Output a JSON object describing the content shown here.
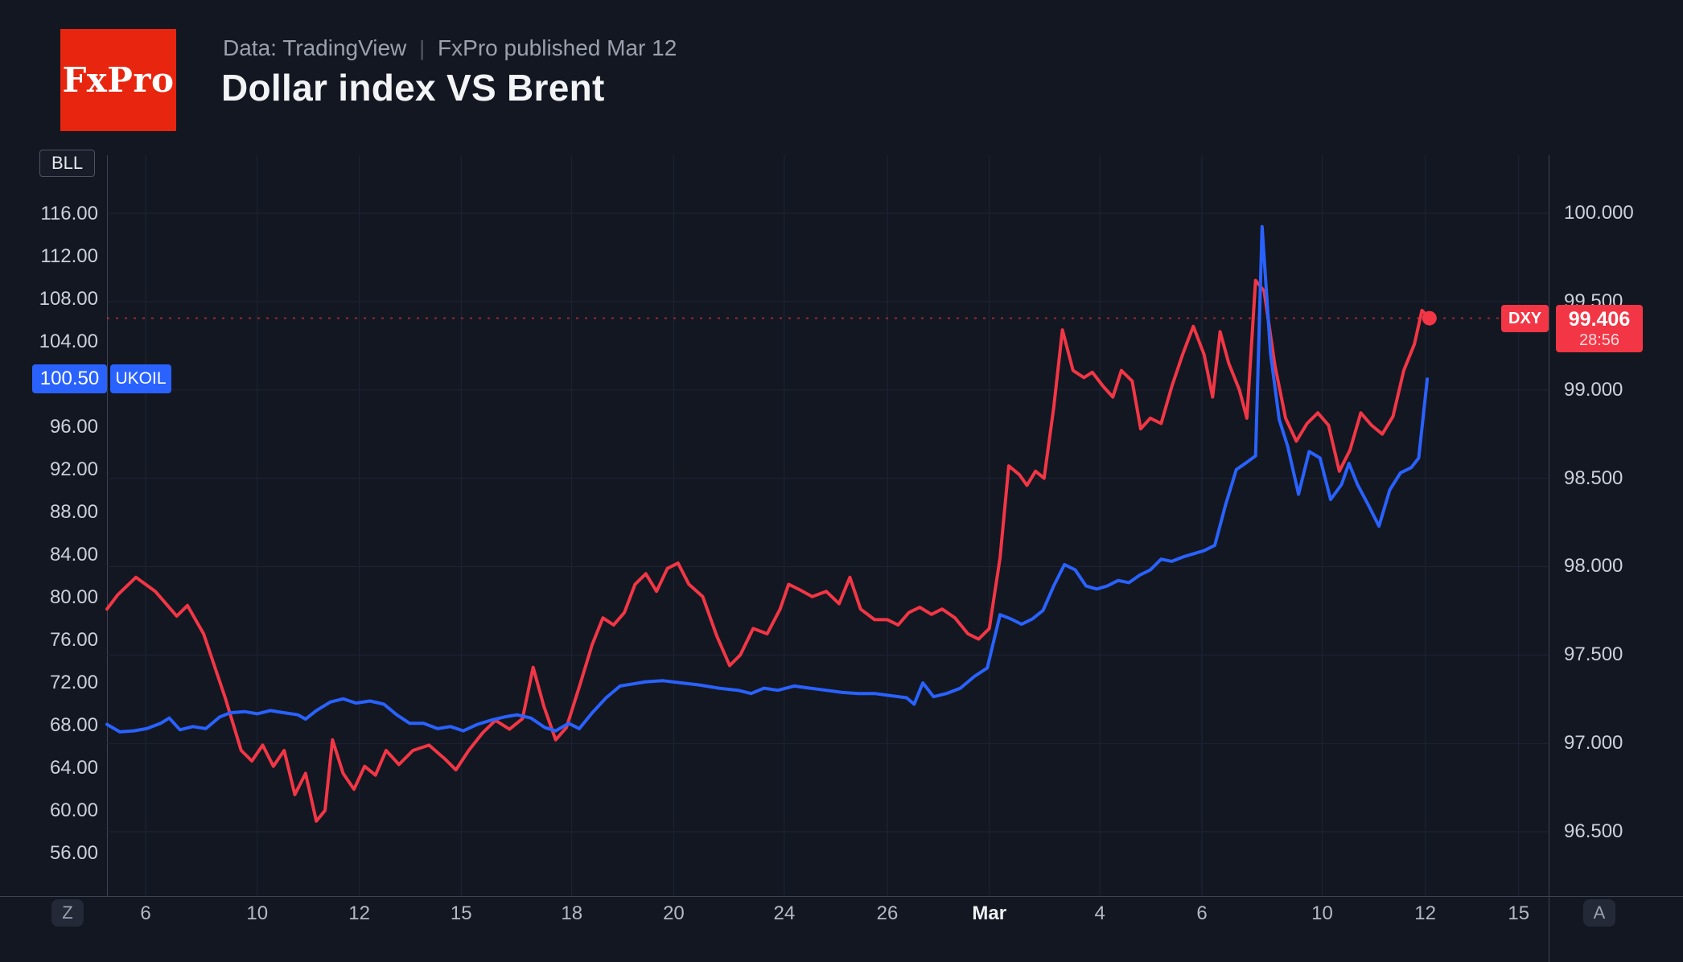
{
  "header": {
    "logo_text": "FxPro",
    "source": "Data: TradingView",
    "divider": "|",
    "published": "FxPro published Mar 12",
    "title": "Dollar index VS Brent"
  },
  "chart": {
    "symbol_badge": "BLL",
    "buttons": {
      "timezone": "Z",
      "auto_scale": "A"
    }
  },
  "chart_data": {
    "type": "line",
    "title": "Dollar index VS Brent",
    "xlabel": "",
    "ylabel": "",
    "grid": true,
    "legend_position": "none",
    "colors": {
      "dxy": "#f23645",
      "ukoil": "#2962ff"
    },
    "x_axis": {
      "note": "trading days Feb 6 - Mar 15",
      "ticks": [
        {
          "f": 0.0268,
          "label": "6"
        },
        {
          "f": 0.1042,
          "label": "10"
        },
        {
          "f": 0.175,
          "label": "12"
        },
        {
          "f": 0.2457,
          "label": "15"
        },
        {
          "f": 0.3224,
          "label": "18"
        },
        {
          "f": 0.3931,
          "label": "20"
        },
        {
          "f": 0.4698,
          "label": "24"
        },
        {
          "f": 0.5413,
          "label": "26"
        },
        {
          "f": 0.612,
          "label": "Mar",
          "bold": true
        },
        {
          "f": 0.6887,
          "label": "4"
        },
        {
          "f": 0.7595,
          "label": "6"
        },
        {
          "f": 0.8429,
          "label": "10"
        },
        {
          "f": 0.9144,
          "label": "12"
        },
        {
          "f": 0.9792,
          "label": "15"
        }
      ]
    },
    "left_axis": {
      "symbol": "UKOIL",
      "min": 52.0,
      "max": 121.5,
      "ticks": [
        {
          "label": "116.00",
          "v": 116
        },
        {
          "label": "112.00",
          "v": 112
        },
        {
          "label": "108.00",
          "v": 108
        },
        {
          "label": "104.00",
          "v": 104
        },
        {
          "label": "96.00",
          "v": 96
        },
        {
          "label": "92.00",
          "v": 92
        },
        {
          "label": "88.00",
          "v": 88
        },
        {
          "label": "84.00",
          "v": 84
        },
        {
          "label": "80.00",
          "v": 80
        },
        {
          "label": "76.00",
          "v": 76
        },
        {
          "label": "72.00",
          "v": 72
        },
        {
          "label": "68.00",
          "v": 68
        },
        {
          "label": "64.00",
          "v": 64
        },
        {
          "label": "60.00",
          "v": 60
        },
        {
          "label": "56.00",
          "v": 56
        }
      ]
    },
    "right_axis": {
      "symbol": "DXY",
      "min": 96.136,
      "max": 100.328,
      "ticks": [
        {
          "label": "100.000",
          "v": 100.0
        },
        {
          "label": "99.500",
          "v": 99.5
        },
        {
          "label": "99.000",
          "v": 99.0
        },
        {
          "label": "98.500",
          "v": 98.5
        },
        {
          "label": "98.000",
          "v": 98.0
        },
        {
          "label": "97.500",
          "v": 97.5
        },
        {
          "label": "97.000",
          "v": 97.0
        },
        {
          "label": "96.500",
          "v": 96.5
        }
      ]
    },
    "price_labels": {
      "ukoil": {
        "price": "100.50",
        "symbol": "UKOIL",
        "value": 100.5
      },
      "dxy": {
        "tag": "DXY",
        "price": "99.406",
        "countdown": "28:56",
        "value": 99.406
      }
    },
    "series": [
      {
        "name": "DXY",
        "color": "#f23645",
        "axis": "right",
        "last_value": 99.406,
        "points": [
          [
            0.0,
            97.76
          ],
          [
            0.0074,
            97.84
          ],
          [
            0.0201,
            97.94
          ],
          [
            0.0335,
            97.86
          ],
          [
            0.0484,
            97.72
          ],
          [
            0.0558,
            97.78
          ],
          [
            0.067,
            97.62
          ],
          [
            0.0819,
            97.26
          ],
          [
            0.0931,
            96.96
          ],
          [
            0.1005,
            96.9
          ],
          [
            0.108,
            96.99
          ],
          [
            0.1154,
            96.87
          ],
          [
            0.1229,
            96.96
          ],
          [
            0.1303,
            96.71
          ],
          [
            0.1377,
            96.83
          ],
          [
            0.1452,
            96.56
          ],
          [
            0.1512,
            96.62
          ],
          [
            0.1564,
            97.02
          ],
          [
            0.1638,
            96.83
          ],
          [
            0.1713,
            96.74
          ],
          [
            0.1787,
            96.87
          ],
          [
            0.1862,
            96.82
          ],
          [
            0.1936,
            96.96
          ],
          [
            0.2025,
            96.88
          ],
          [
            0.2122,
            96.96
          ],
          [
            0.2234,
            96.99
          ],
          [
            0.2346,
            96.91
          ],
          [
            0.242,
            96.85
          ],
          [
            0.2509,
            96.96
          ],
          [
            0.2606,
            97.06
          ],
          [
            0.2695,
            97.13
          ],
          [
            0.2792,
            97.08
          ],
          [
            0.2882,
            97.14
          ],
          [
            0.2956,
            97.43
          ],
          [
            0.303,
            97.21
          ],
          [
            0.3112,
            97.02
          ],
          [
            0.3187,
            97.09
          ],
          [
            0.3276,
            97.32
          ],
          [
            0.3366,
            97.56
          ],
          [
            0.344,
            97.71
          ],
          [
            0.3514,
            97.67
          ],
          [
            0.3589,
            97.74
          ],
          [
            0.3663,
            97.9
          ],
          [
            0.3738,
            97.96
          ],
          [
            0.3812,
            97.86
          ],
          [
            0.3887,
            97.99
          ],
          [
            0.3961,
            98.02
          ],
          [
            0.4036,
            97.9
          ],
          [
            0.4132,
            97.83
          ],
          [
            0.4229,
            97.61
          ],
          [
            0.4319,
            97.44
          ],
          [
            0.4393,
            97.5
          ],
          [
            0.4482,
            97.65
          ],
          [
            0.4579,
            97.62
          ],
          [
            0.4669,
            97.76
          ],
          [
            0.4728,
            97.9
          ],
          [
            0.4803,
            97.87
          ],
          [
            0.4892,
            97.83
          ],
          [
            0.4989,
            97.86
          ],
          [
            0.5078,
            97.79
          ],
          [
            0.5153,
            97.94
          ],
          [
            0.5227,
            97.76
          ],
          [
            0.5324,
            97.7
          ],
          [
            0.5413,
            97.7
          ],
          [
            0.5488,
            97.67
          ],
          [
            0.5562,
            97.74
          ],
          [
            0.5637,
            97.77
          ],
          [
            0.5719,
            97.73
          ],
          [
            0.5793,
            97.76
          ],
          [
            0.5882,
            97.71
          ],
          [
            0.5972,
            97.62
          ],
          [
            0.6046,
            97.59
          ],
          [
            0.612,
            97.65
          ],
          [
            0.6195,
            98.05
          ],
          [
            0.6255,
            98.57
          ],
          [
            0.6329,
            98.52
          ],
          [
            0.6381,
            98.46
          ],
          [
            0.6441,
            98.54
          ],
          [
            0.65,
            98.5
          ],
          [
            0.6567,
            98.9
          ],
          [
            0.6627,
            99.34
          ],
          [
            0.6701,
            99.11
          ],
          [
            0.6776,
            99.07
          ],
          [
            0.6835,
            99.1
          ],
          [
            0.691,
            99.02
          ],
          [
            0.6977,
            98.96
          ],
          [
            0.7036,
            99.11
          ],
          [
            0.7111,
            99.05
          ],
          [
            0.717,
            98.78
          ],
          [
            0.7237,
            98.84
          ],
          [
            0.7312,
            98.81
          ],
          [
            0.7386,
            99.02
          ],
          [
            0.7461,
            99.2
          ],
          [
            0.7535,
            99.36
          ],
          [
            0.761,
            99.2
          ],
          [
            0.7669,
            98.96
          ],
          [
            0.7721,
            99.33
          ],
          [
            0.7781,
            99.15
          ],
          [
            0.7855,
            99.0
          ],
          [
            0.7907,
            98.84
          ],
          [
            0.7967,
            99.62
          ],
          [
            0.8026,
            99.56
          ],
          [
            0.8101,
            99.14
          ],
          [
            0.8175,
            98.84
          ],
          [
            0.825,
            98.71
          ],
          [
            0.8324,
            98.81
          ],
          [
            0.8399,
            98.87
          ],
          [
            0.8473,
            98.8
          ],
          [
            0.8548,
            98.54
          ],
          [
            0.8622,
            98.66
          ],
          [
            0.8697,
            98.87
          ],
          [
            0.8771,
            98.8
          ],
          [
            0.8846,
            98.75
          ],
          [
            0.892,
            98.85
          ],
          [
            0.8995,
            99.11
          ],
          [
            0.9069,
            99.26
          ],
          [
            0.9121,
            99.45
          ],
          [
            0.9173,
            99.406
          ]
        ]
      },
      {
        "name": "UKOIL",
        "color": "#2962ff",
        "axis": "left",
        "last_value": 100.5,
        "points": [
          [
            0.0,
            68.1
          ],
          [
            0.0089,
            67.4
          ],
          [
            0.0186,
            67.5
          ],
          [
            0.0275,
            67.7
          ],
          [
            0.0372,
            68.2
          ],
          [
            0.0432,
            68.7
          ],
          [
            0.0506,
            67.6
          ],
          [
            0.0596,
            67.9
          ],
          [
            0.0685,
            67.7
          ],
          [
            0.0782,
            68.8
          ],
          [
            0.0856,
            69.2
          ],
          [
            0.0953,
            69.3
          ],
          [
            0.1042,
            69.1
          ],
          [
            0.1132,
            69.4
          ],
          [
            0.1229,
            69.2
          ],
          [
            0.1325,
            69.0
          ],
          [
            0.1377,
            68.6
          ],
          [
            0.1452,
            69.4
          ],
          [
            0.1549,
            70.2
          ],
          [
            0.1638,
            70.5
          ],
          [
            0.1727,
            70.1
          ],
          [
            0.1824,
            70.3
          ],
          [
            0.1921,
            70.0
          ],
          [
            0.201,
            69.0
          ],
          [
            0.21,
            68.2
          ],
          [
            0.2196,
            68.2
          ],
          [
            0.2293,
            67.7
          ],
          [
            0.2383,
            67.9
          ],
          [
            0.2472,
            67.5
          ],
          [
            0.2569,
            68.1
          ],
          [
            0.2666,
            68.5
          ],
          [
            0.2755,
            68.8
          ],
          [
            0.2844,
            69.0
          ],
          [
            0.2941,
            68.7
          ],
          [
            0.3038,
            67.8
          ],
          [
            0.3112,
            67.5
          ],
          [
            0.3202,
            68.2
          ],
          [
            0.3276,
            67.7
          ],
          [
            0.3366,
            69.2
          ],
          [
            0.3462,
            70.6
          ],
          [
            0.3559,
            71.7
          ],
          [
            0.3648,
            71.9
          ],
          [
            0.3738,
            72.1
          ],
          [
            0.3857,
            72.2
          ],
          [
            0.3983,
            72.0
          ],
          [
            0.411,
            71.8
          ],
          [
            0.4244,
            71.5
          ],
          [
            0.4378,
            71.3
          ],
          [
            0.4468,
            71.0
          ],
          [
            0.4557,
            71.5
          ],
          [
            0.4654,
            71.3
          ],
          [
            0.4766,
            71.7
          ],
          [
            0.4877,
            71.5
          ],
          [
            0.4989,
            71.3
          ],
          [
            0.5101,
            71.1
          ],
          [
            0.5212,
            71.0
          ],
          [
            0.5324,
            71.0
          ],
          [
            0.5435,
            70.8
          ],
          [
            0.5547,
            70.6
          ],
          [
            0.5599,
            70.0
          ],
          [
            0.5659,
            72.0
          ],
          [
            0.5733,
            70.7
          ],
          [
            0.5823,
            71.0
          ],
          [
            0.5919,
            71.5
          ],
          [
            0.6016,
            72.6
          ],
          [
            0.6106,
            73.4
          ],
          [
            0.6195,
            78.4
          ],
          [
            0.627,
            78.0
          ],
          [
            0.6344,
            77.5
          ],
          [
            0.6419,
            78.0
          ],
          [
            0.6493,
            78.8
          ],
          [
            0.6567,
            81.1
          ],
          [
            0.6642,
            83.1
          ],
          [
            0.6716,
            82.6
          ],
          [
            0.6791,
            81.1
          ],
          [
            0.6865,
            80.8
          ],
          [
            0.694,
            81.1
          ],
          [
            0.7014,
            81.6
          ],
          [
            0.7089,
            81.4
          ],
          [
            0.7163,
            82.1
          ],
          [
            0.7237,
            82.6
          ],
          [
            0.7312,
            83.6
          ],
          [
            0.7386,
            83.4
          ],
          [
            0.7461,
            83.8
          ],
          [
            0.7535,
            84.1
          ],
          [
            0.761,
            84.4
          ],
          [
            0.7684,
            84.9
          ],
          [
            0.7759,
            88.7
          ],
          [
            0.7833,
            92.0
          ],
          [
            0.7907,
            92.7
          ],
          [
            0.7967,
            93.3
          ],
          [
            0.8012,
            114.8
          ],
          [
            0.8071,
            102.9
          ],
          [
            0.8131,
            96.7
          ],
          [
            0.819,
            94.2
          ],
          [
            0.8265,
            89.7
          ],
          [
            0.8339,
            93.7
          ],
          [
            0.8414,
            93.1
          ],
          [
            0.8488,
            89.2
          ],
          [
            0.8563,
            90.6
          ],
          [
            0.8615,
            92.6
          ],
          [
            0.8674,
            90.6
          ],
          [
            0.8749,
            88.7
          ],
          [
            0.8823,
            86.7
          ],
          [
            0.8898,
            90.1
          ],
          [
            0.8972,
            91.7
          ],
          [
            0.9047,
            92.2
          ],
          [
            0.9099,
            93.1
          ],
          [
            0.9158,
            100.5
          ]
        ]
      }
    ]
  }
}
